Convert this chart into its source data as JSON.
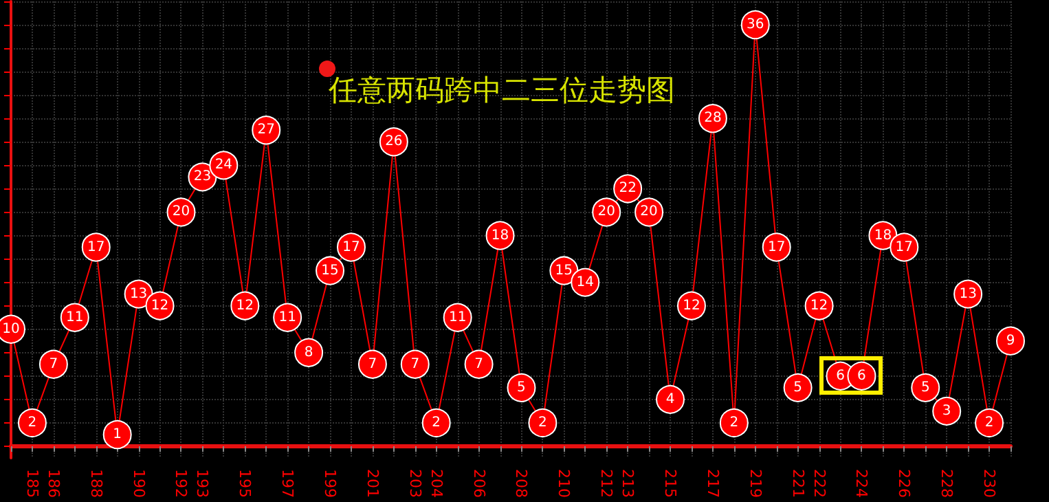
{
  "chart_data": {
    "type": "line",
    "title": "任意两码跨中二三位走势图",
    "categories": [
      null,
      "185",
      "186",
      null,
      "188",
      null,
      "190",
      null,
      "192",
      "193",
      null,
      "195",
      null,
      "197",
      null,
      "199",
      null,
      "201",
      null,
      "203",
      "204",
      null,
      "206",
      null,
      "208",
      null,
      "210",
      null,
      "212",
      "213",
      null,
      "215",
      null,
      "217",
      null,
      "219",
      null,
      "221",
      "222",
      null,
      "224",
      null,
      "226",
      null,
      "228",
      null,
      "230",
      null
    ],
    "series": [
      {
        "color": "#ff0000",
        "values": [
          10,
          2,
          7,
          11,
          17,
          1,
          13,
          12,
          20,
          23,
          24,
          12,
          27,
          11,
          8,
          15,
          17,
          7,
          26,
          7,
          2,
          11,
          7,
          18,
          5,
          2,
          15,
          14,
          20,
          22,
          20,
          4,
          12,
          28,
          2,
          36,
          17,
          5,
          12,
          6,
          6,
          18,
          17,
          5,
          3,
          13,
          2,
          9
        ]
      }
    ],
    "ylim": [
      -1,
      38
    ],
    "yticks": [
      {
        "value": 0,
        "label": null
      },
      {
        "value": 2,
        "label": null
      },
      {
        "value": 4,
        "label": null
      },
      {
        "value": 6,
        "label": null
      },
      {
        "value": 8,
        "label": null
      },
      {
        "value": 10,
        "label": null
      },
      {
        "value": 12,
        "label": null
      },
      {
        "value": 14,
        "label": null
      },
      {
        "value": 16,
        "label": null
      },
      {
        "value": 18,
        "label": null
      },
      {
        "value": 20,
        "label": null
      },
      {
        "value": 22,
        "label": null
      },
      {
        "value": 24,
        "label": null
      },
      {
        "value": 26,
        "label": null
      },
      {
        "value": 28,
        "label": null
      },
      {
        "value": 30,
        "label": null
      },
      {
        "value": 32,
        "label": null
      },
      {
        "value": 34,
        "label": null
      },
      {
        "value": 36,
        "label": null
      },
      {
        "value": 38,
        "label": null
      }
    ],
    "tick_labels": "x",
    "grid": true,
    "marker": "circle",
    "line_style": "solid",
    "data_labels": true
  }
}
